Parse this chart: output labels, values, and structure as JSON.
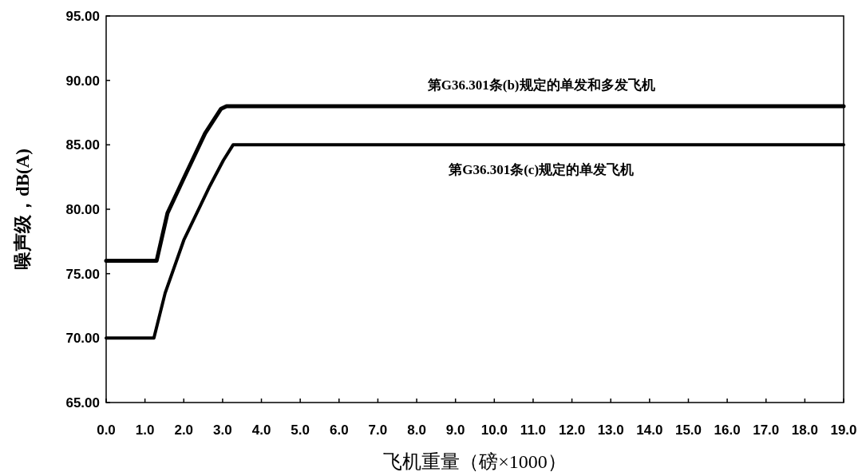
{
  "chart_data": {
    "type": "line",
    "xlabel": "飞机重量（磅×1000）",
    "ylabel": "噪声级，dB(A)",
    "xlim": [
      0,
      19
    ],
    "ylim": [
      65,
      95
    ],
    "xticks": [
      {
        "value": 0,
        "label": "0.0"
      },
      {
        "value": 1,
        "label": "1.0"
      },
      {
        "value": 2,
        "label": "2.0"
      },
      {
        "value": 3,
        "label": "3.0"
      },
      {
        "value": 4,
        "label": "4.0"
      },
      {
        "value": 5,
        "label": "5.0"
      },
      {
        "value": 6,
        "label": "6.0"
      },
      {
        "value": 7,
        "label": "7.0"
      },
      {
        "value": 8,
        "label": "8.0"
      },
      {
        "value": 9,
        "label": "9.0"
      },
      {
        "value": 10,
        "label": "10.0"
      },
      {
        "value": 11,
        "label": "11.0"
      },
      {
        "value": 12,
        "label": "12.0"
      },
      {
        "value": 13,
        "label": "13.0"
      },
      {
        "value": 14,
        "label": "14.0"
      },
      {
        "value": 15,
        "label": "15.0"
      },
      {
        "value": 16,
        "label": "16.0"
      },
      {
        "value": 17,
        "label": "17.0"
      },
      {
        "value": 18,
        "label": "18.0"
      },
      {
        "value": 19,
        "label": "19.0"
      }
    ],
    "yticks": [
      {
        "value": 65,
        "label": "65.00"
      },
      {
        "value": 70,
        "label": "70.00"
      },
      {
        "value": 75,
        "label": "75.00"
      },
      {
        "value": 80,
        "label": "80.00"
      },
      {
        "value": 85,
        "label": "85.00"
      },
      {
        "value": 90,
        "label": "90.00"
      },
      {
        "value": 95,
        "label": "95.00"
      }
    ],
    "grid": false,
    "marker": "none",
    "line_style": "solid",
    "series": [
      {
        "name": "第G36.301条(b)规定的单发和多发飞机",
        "color": "#000000",
        "x": [
          0,
          1.3,
          1.58,
          2.0,
          2.55,
          2.96,
          3.1,
          19
        ],
        "values": [
          76,
          76,
          79.7,
          82.4,
          85.9,
          87.8,
          88,
          88
        ]
      },
      {
        "name": "第G36.301条(c)规定的单发飞机",
        "color": "#000000",
        "x": [
          0,
          1.23,
          1.52,
          2.0,
          2.67,
          3.02,
          3.27,
          19
        ],
        "values": [
          70,
          70,
          73.5,
          77.6,
          81.8,
          83.8,
          85,
          85
        ]
      }
    ]
  }
}
